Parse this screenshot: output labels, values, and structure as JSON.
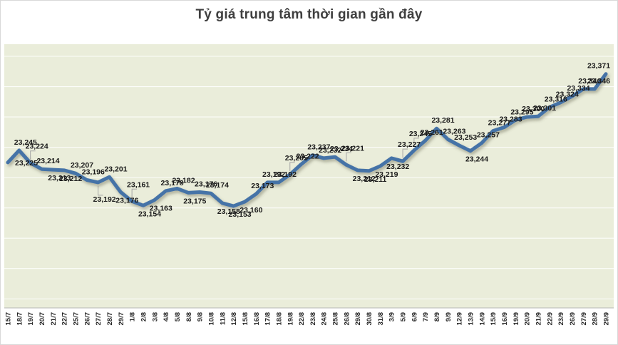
{
  "chart_data": {
    "type": "line",
    "title": "Tỷ giá trung tâm thời gian gần đây",
    "xlabel": "",
    "ylabel": "",
    "legend": "none",
    "grid": "horizontal",
    "ylim": [
      22985,
      23420
    ],
    "gridlines": {
      "start": 23000,
      "step": 50,
      "end": 23400
    },
    "series_name": "Tỷ giá trung tâm",
    "x": [
      "15/7",
      "18/7",
      "19/7",
      "20/7",
      "21/7",
      "22/7",
      "25/7",
      "26/7",
      "27/7",
      "28/7",
      "29/7",
      "1/8",
      "2/8",
      "3/8",
      "4/8",
      "5/8",
      "8/8",
      "9/8",
      "10/8",
      "11/8",
      "12/8",
      "15/8",
      "16/8",
      "17/8",
      "18/8",
      "19/8",
      "22/8",
      "23/8",
      "24/8",
      "25/8",
      "26/8",
      "29/8",
      "30/8",
      "31/8",
      "3/9",
      "5/9",
      "6/9",
      "7/9",
      "8/9",
      "9/9",
      "12/9",
      "13/9",
      "14/9",
      "15/9",
      "16/9",
      "19/9",
      "20/9",
      "21/9",
      "22/9",
      "23/9",
      "26/9",
      "27/9",
      "28/9",
      "29/9"
    ],
    "values": [
      23225,
      23245,
      23224,
      23214,
      23213,
      23212,
      23207,
      23196,
      23192,
      23201,
      23176,
      23161,
      23154,
      23163,
      23178,
      23182,
      23175,
      23176,
      23174,
      23158,
      23153,
      23160,
      23173,
      23192,
      23192,
      23205,
      23222,
      23237,
      23232,
      23234,
      23221,
      23212,
      23211,
      23219,
      23232,
      23227,
      23245,
      23261,
      23281,
      23263,
      23253,
      23244,
      23257,
      23277,
      23283,
      23295,
      23300,
      23301,
      23316,
      23324,
      23334,
      23346,
      23346,
      23371
    ],
    "label_pos": [
      "r",
      "a",
      "a",
      "a",
      "b",
      "b",
      "a",
      "a",
      "b",
      "a",
      "b",
      "a",
      "b",
      "b",
      "a",
      "a",
      "b",
      "a",
      "a",
      "b",
      "b",
      "b",
      "a",
      "a",
      "a",
      "a",
      "a",
      "a",
      "a",
      "a",
      "a",
      "b",
      "b",
      "b",
      "b",
      "a",
      "a",
      "a",
      "a",
      "a",
      "a",
      "b",
      "a",
      "a",
      "a",
      "a",
      "a",
      "a",
      "a",
      "a",
      "a",
      "a",
      "a",
      "a"
    ],
    "callout_indices": [
      2,
      8,
      11,
      25,
      30,
      35,
      36
    ],
    "colors": {
      "line": "#4573a7",
      "plot_bg": "#eaedda",
      "gridline": "#ffffff",
      "data_label": "#1a1a1a",
      "axis_label": "#262626",
      "axis_line": "#b7b7b7",
      "leader_line": "#a6a6a6",
      "title": "#3f3f3f"
    }
  }
}
